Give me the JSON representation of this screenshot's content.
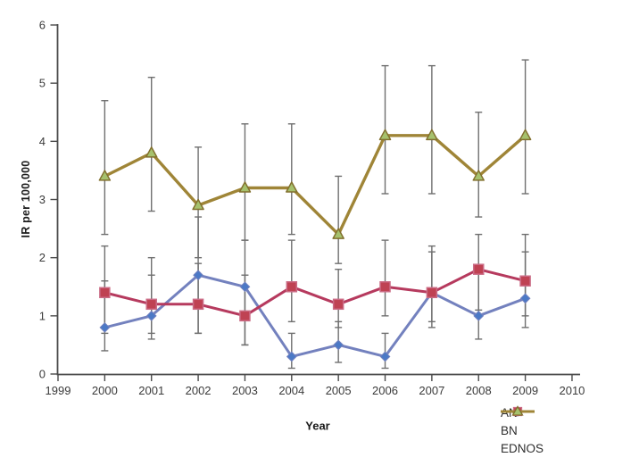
{
  "chart_data": {
    "type": "line",
    "title": "",
    "xlabel": "Year",
    "ylabel": "IR per 100,000",
    "xlim": [
      1999,
      2010
    ],
    "ylim": [
      0,
      6
    ],
    "x_ticks": [
      1999,
      2000,
      2001,
      2002,
      2003,
      2004,
      2005,
      2006,
      2007,
      2008,
      2009,
      2010
    ],
    "y_ticks": [
      0,
      1,
      2,
      3,
      4,
      5,
      6
    ],
    "grid": false,
    "legend_position": "bottom-right",
    "error_bar_color": "#6f6f6f",
    "axis_color": "#4a4a4a",
    "tick_label_color": "#3b3b3b",
    "x": [
      2000,
      2001,
      2002,
      2003,
      2004,
      2005,
      2006,
      2007,
      2008,
      2009
    ],
    "series": [
      {
        "name": "AN",
        "marker": "diamond",
        "line_color": "#7381BE",
        "marker_fill": "#4B79C6",
        "marker_stroke": "#7381BE",
        "values": [
          0.8,
          1.0,
          1.7,
          1.5,
          0.3,
          0.5,
          0.3,
          1.4,
          1.0,
          1.3
        ],
        "ci_lower": [
          0.4,
          0.6,
          0.7,
          0.5,
          0.1,
          0.2,
          0.1,
          0.8,
          0.6,
          0.8
        ],
        "ci_upper": [
          1.6,
          1.7,
          2.7,
          2.3,
          0.7,
          0.9,
          0.7,
          2.1,
          1.8,
          2.1
        ]
      },
      {
        "name": "BN",
        "marker": "square",
        "line_color": "#B63A5E",
        "marker_fill": "#BF4253",
        "marker_stroke": "#CB6C86",
        "values": [
          1.4,
          1.2,
          1.2,
          1.0,
          1.5,
          1.2,
          1.5,
          1.4,
          1.8,
          1.6
        ],
        "ci_lower": [
          0.7,
          0.7,
          0.7,
          0.5,
          0.9,
          0.8,
          1.0,
          0.9,
          1.1,
          1.0
        ],
        "ci_upper": [
          2.2,
          2.0,
          1.9,
          1.7,
          2.3,
          1.8,
          2.3,
          2.2,
          2.4,
          2.4
        ]
      },
      {
        "name": "EDNOS",
        "marker": "triangle",
        "line_color": "#9F8537",
        "marker_fill": "#A6C16D",
        "marker_stroke": "#82702E",
        "values": [
          3.4,
          3.8,
          2.9,
          3.2,
          3.2,
          2.4,
          4.1,
          4.1,
          3.4,
          4.1
        ],
        "ci_lower": [
          2.4,
          2.8,
          2.0,
          2.3,
          2.4,
          1.9,
          3.1,
          3.1,
          2.7,
          3.1
        ],
        "ci_upper": [
          4.7,
          5.1,
          3.9,
          4.3,
          4.3,
          3.4,
          5.3,
          5.3,
          4.5,
          5.4
        ]
      }
    ]
  }
}
